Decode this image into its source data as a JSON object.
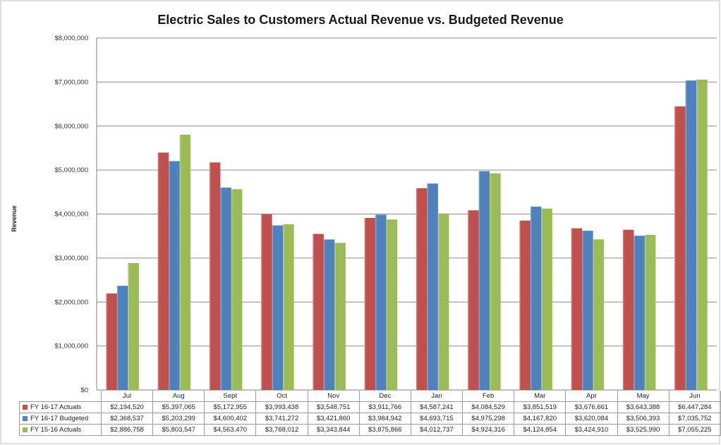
{
  "chart_data": {
    "type": "bar",
    "title": "Electric Sales to Customers Actual Revenue vs. Budgeted Revenue",
    "ylabel": "Revenue",
    "xlabel": "",
    "ylim": [
      0,
      8000000
    ],
    "yticks": [
      "$0",
      "$1,000,000",
      "$2,000,000",
      "$3,000,000",
      "$4,000,000",
      "$5,000,000",
      "$6,000,000",
      "$7,000,000",
      "$8,000,000"
    ],
    "grid": true,
    "legend": "data-table",
    "categories": [
      "Jul",
      "Aug",
      "Sept",
      "Oct",
      "Nov",
      "Dec",
      "Jan",
      "Feb",
      "Mar",
      "Apr",
      "May",
      "Jun"
    ],
    "series": [
      {
        "name": "FY 16-17 Actuals",
        "color": "#c0504d",
        "values": [
          2194520,
          5397065,
          5172955,
          3993438,
          3548751,
          3911766,
          4587241,
          4084529,
          3851519,
          3676661,
          3643388,
          6447284
        ],
        "labels": [
          "$2,194,520",
          "$5,397,065",
          "$5,172,955",
          "$3,993,438",
          "$3,548,751",
          "$3,911,766",
          "$4,587,241",
          "$4,084,529",
          "$3,851,519",
          "$3,676,661",
          "$3,643,388",
          "$6,447,284"
        ]
      },
      {
        "name": "FY 16-17 Budgeted",
        "color": "#4f81bd",
        "values": [
          2368537,
          5203299,
          4600402,
          3741272,
          3421860,
          3984942,
          4693715,
          4975298,
          4167820,
          3620084,
          3506393,
          7035752
        ],
        "labels": [
          "$2,368,537",
          "$5,203,299",
          "$4,600,402",
          "$3,741,272",
          "$3,421,860",
          "$3,984,942",
          "$4,693,715",
          "$4,975,298",
          "$4,167,820",
          "$3,620,084",
          "$3,506,393",
          "$7,035,752"
        ]
      },
      {
        "name": "FY 15-16 Actuals",
        "color": "#9bbb59",
        "values": [
          2886758,
          5803547,
          4563470,
          3768012,
          3343844,
          3875866,
          4012737,
          4924316,
          4124854,
          3424910,
          3525990,
          7055225
        ],
        "labels": [
          "$2,886,758",
          "$5,803,547",
          "$4,563,470",
          "$3,768,012",
          "$3,343,844",
          "$3,875,866",
          "$4,012,737",
          "$4,924,316",
          "$4,124,854",
          "$3,424,910",
          "$3,525,990",
          "$7,055,225"
        ]
      }
    ]
  }
}
